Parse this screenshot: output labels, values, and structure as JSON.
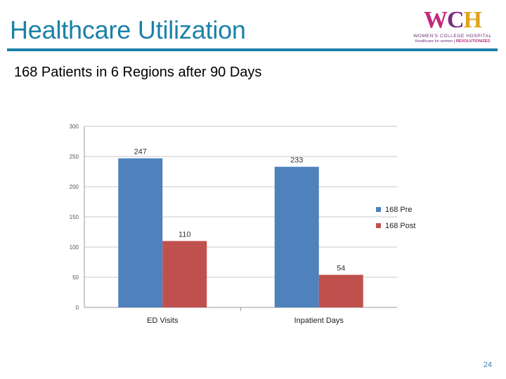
{
  "slide": {
    "title": "Healthcare Utilization",
    "subtitle": "168 Patients in 6 Regions after 90 Days",
    "page_number": "24"
  },
  "logo": {
    "letters": [
      "W",
      "C",
      "H"
    ],
    "name": "WOMEN'S COLLEGE HOSPITAL",
    "tagline": "Healthcare for women",
    "tagline_emphasis": "REVOLUTIONIZED",
    "colors": {
      "w": "#c2287d",
      "c": "#7b2b82",
      "h": "#e0a21c"
    }
  },
  "colors": {
    "accent": "#1a82a8"
  },
  "chart_data": {
    "type": "bar",
    "categories": [
      "ED Visits",
      "Inpatient Days"
    ],
    "series": [
      {
        "name": "168 Pre",
        "values": [
          247,
          233
        ],
        "color": "#4f81bd"
      },
      {
        "name": "168 Post",
        "values": [
          110,
          54
        ],
        "color": "#c0504d"
      }
    ],
    "title": "",
    "xlabel": "",
    "ylabel": "",
    "ylim": [
      0,
      300
    ],
    "yticks": [
      0,
      50,
      100,
      150,
      200,
      250,
      300
    ],
    "grid": true,
    "legend": "right",
    "data_labels": true
  }
}
